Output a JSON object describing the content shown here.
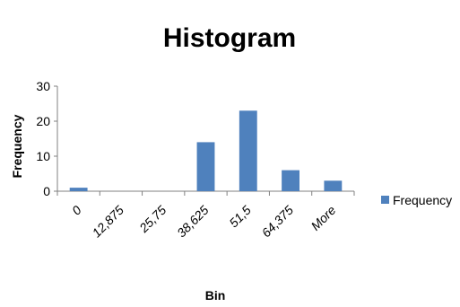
{
  "chart_data": {
    "type": "bar",
    "title": "Histogram",
    "xlabel": "Bin",
    "ylabel": "Frequency",
    "categories": [
      "0",
      "12,875",
      "25,75",
      "38,625",
      "51,5",
      "64,375",
      "More"
    ],
    "series": [
      {
        "name": "Frequency",
        "values": [
          1,
          0,
          0,
          14,
          23,
          6,
          3
        ],
        "color": "#4F81BD"
      }
    ],
    "ylim": [
      0,
      30
    ],
    "yticks": [
      "0",
      "10",
      "20",
      "30"
    ],
    "grid": false,
    "legend": "right"
  }
}
